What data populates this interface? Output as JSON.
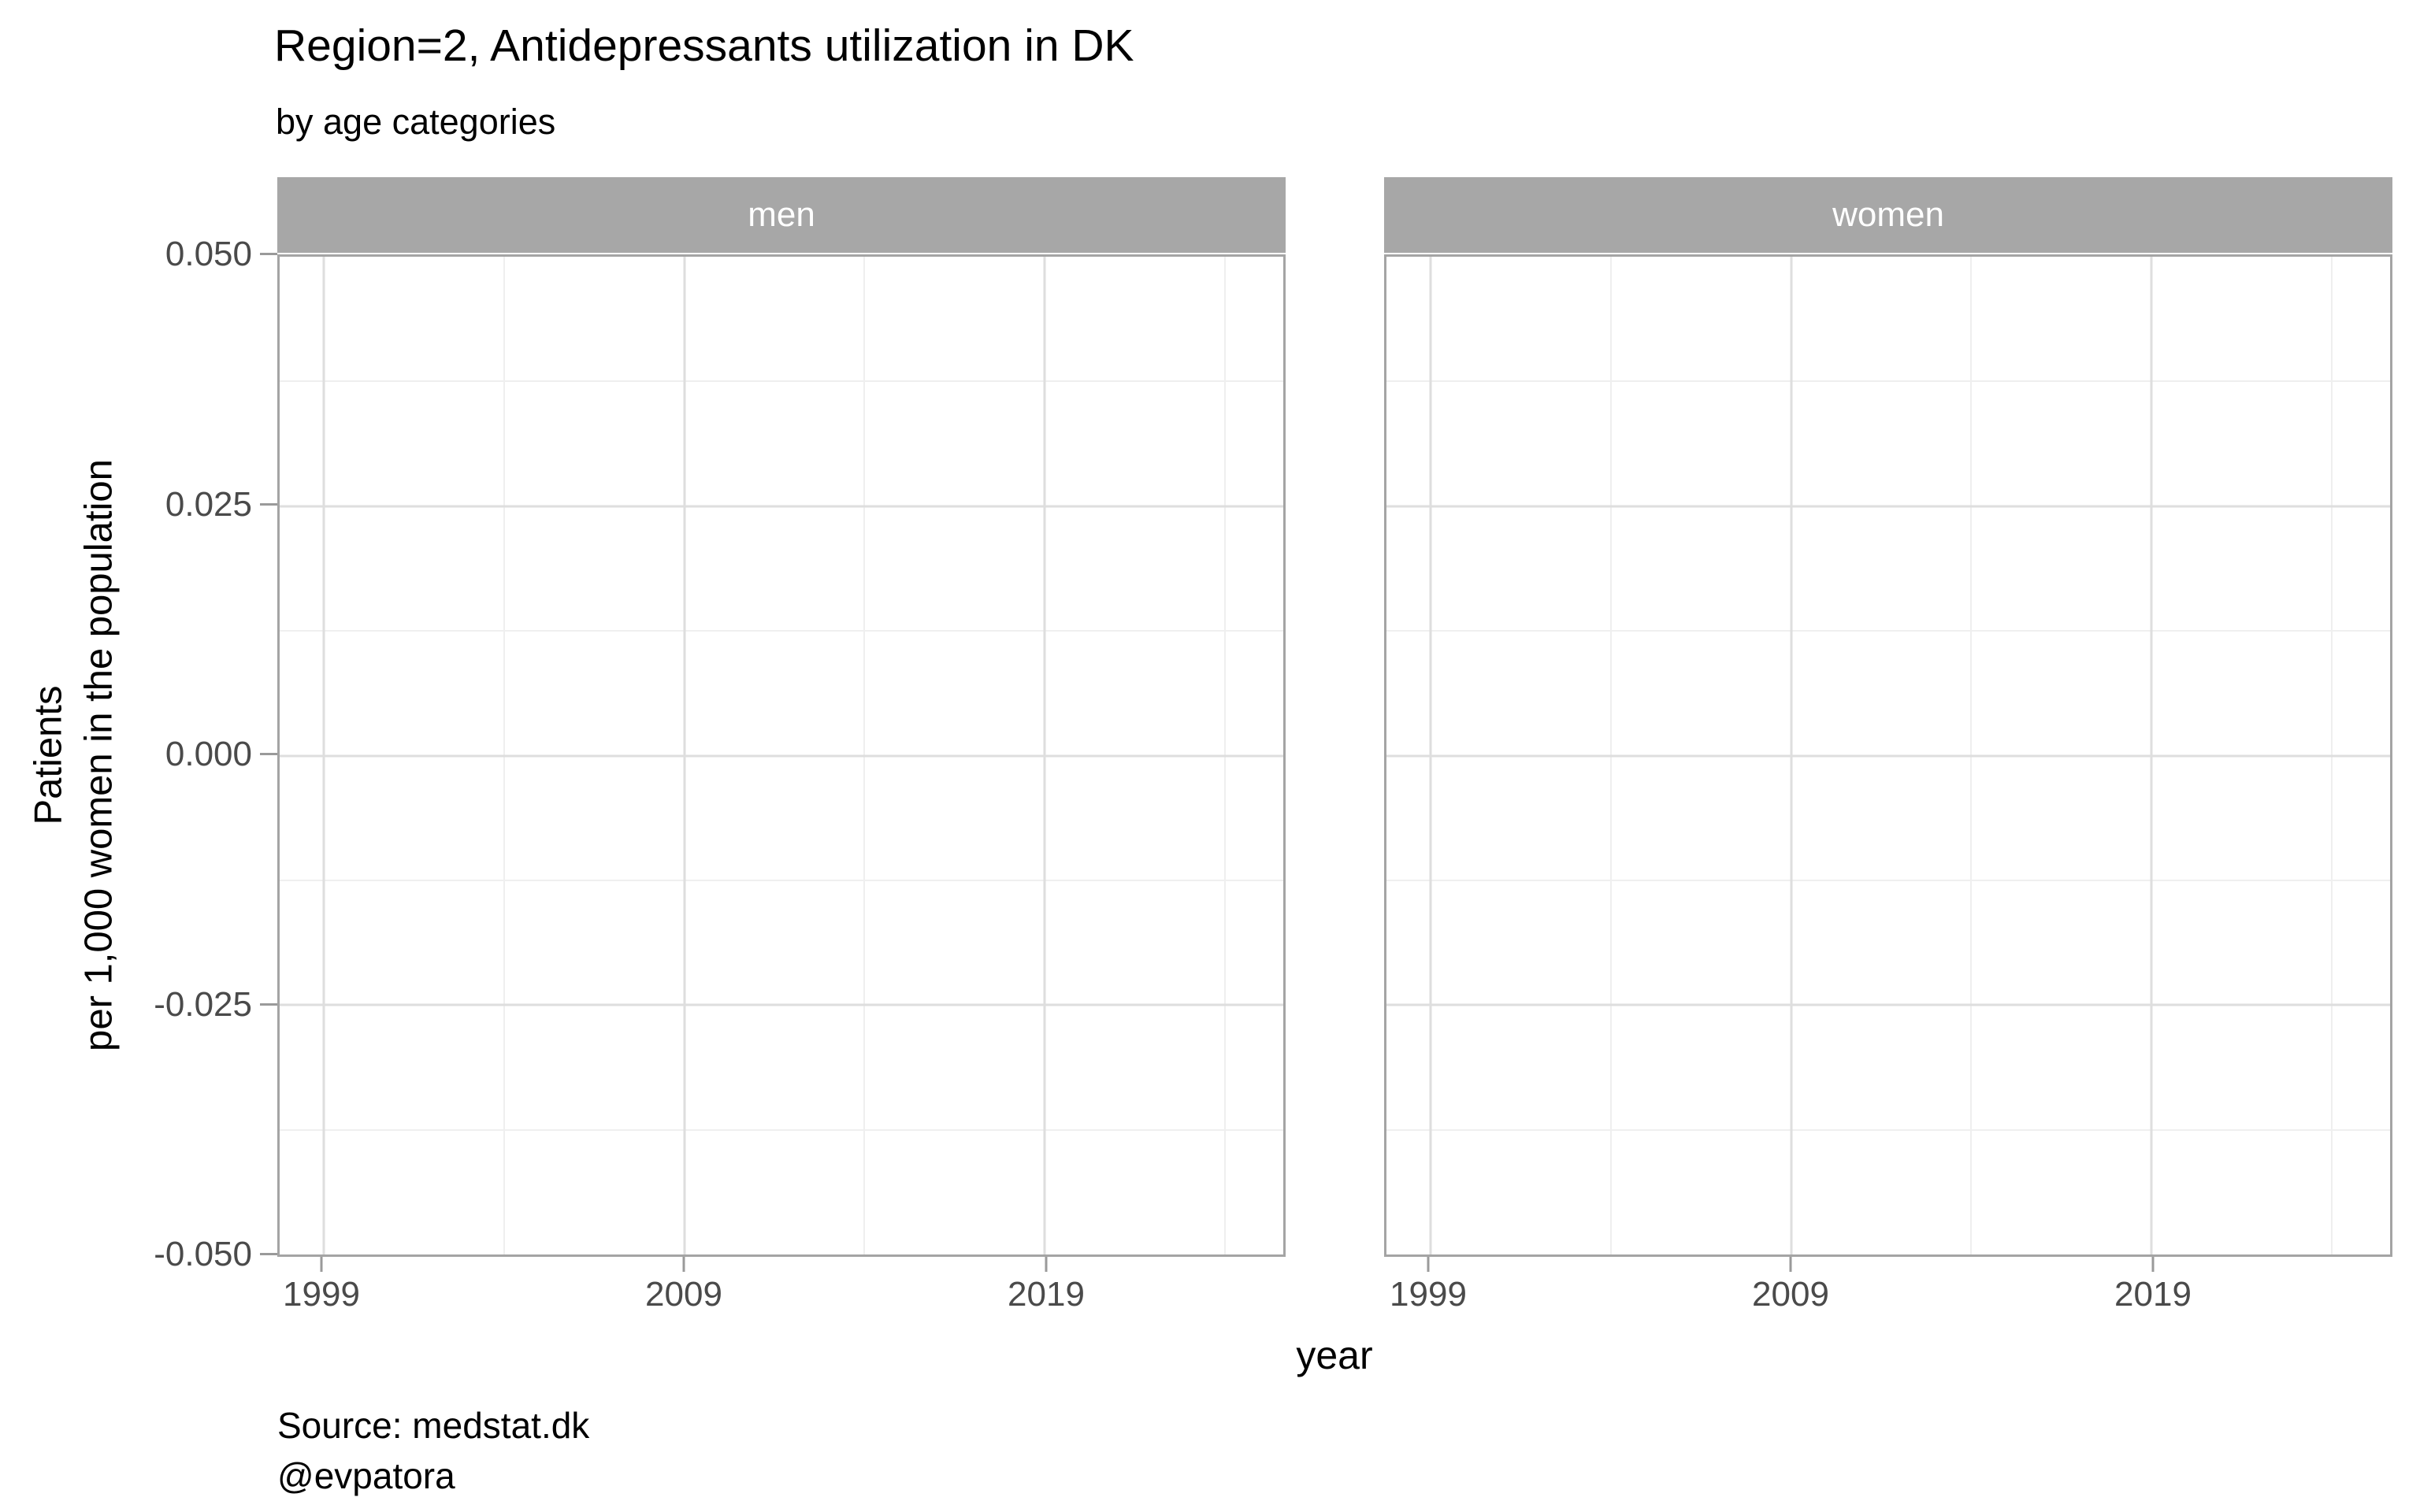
{
  "header": {
    "title": "Region=2, Antidepressants utilization in DK",
    "subtitle": "by age categories"
  },
  "facets": [
    {
      "label": "men"
    },
    {
      "label": "women"
    }
  ],
  "y_axis": {
    "title_line1": "Patients",
    "title_line2": "per 1,000 women in the population",
    "ticks": [
      "0.050",
      "0.025",
      "0.000",
      "-0.025",
      "-0.050"
    ]
  },
  "x_axis": {
    "title": "year",
    "ticks": [
      "1999",
      "2009",
      "2019"
    ]
  },
  "caption": {
    "line1": "Source: medstat.dk",
    "line2": "@evpatora"
  },
  "colors": {
    "background": "#FFFFFF",
    "text": "#000000",
    "tick_label": "#4A4A4A",
    "strip_fill": "#A7A7A7",
    "strip_text": "#FFFFFF",
    "panel_border": "#A4A4A4",
    "grid_major": "#DEDEDE",
    "grid_minor": "#EFEFEF",
    "axis_tick": "#9A9A9A"
  },
  "chart_data": {
    "type": "line",
    "title": "Region=2, Antidepressants utilization in DK",
    "subtitle": "by age categories",
    "caption": [
      "Source: medstat.dk",
      "@evpatora"
    ],
    "facets": [
      "men",
      "women"
    ],
    "xlabel": "year",
    "ylabel": "Patients per 1,000 women in the population",
    "xlim": [
      1998,
      2026
    ],
    "ylim": [
      -0.05,
      0.05
    ],
    "x_breaks": [
      1999,
      2009,
      2019
    ],
    "x_minor_breaks": [
      2004,
      2014,
      2024
    ],
    "y_breaks": [
      0.05,
      0.025,
      0.0,
      -0.025,
      -0.05
    ],
    "y_minor_breaks": [
      0.0375,
      0.0125,
      -0.0125,
      -0.0375
    ],
    "grid": true,
    "legend": "none",
    "series": []
  }
}
